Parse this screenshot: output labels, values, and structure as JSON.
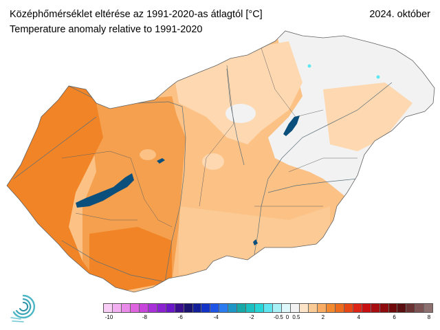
{
  "header": {
    "title_hu": "Középhőmérséklet eltérése az 1991-2020-as átlagtól [°C]",
    "title_en": "Temperature anomaly relative to 1991-2020",
    "period": "2024. október"
  },
  "map": {
    "region": "Hungary",
    "variable": "Temperature anomaly",
    "unit": "°C",
    "zones": [
      {
        "name": "west-transdanubia",
        "anomaly_class": "2 to 3",
        "color": "#f08426"
      },
      {
        "name": "central-transdanubia",
        "anomaly_class": "1.5 to 2",
        "color": "#f5a04e"
      },
      {
        "name": "danube-tisza-interfluve",
        "anomaly_class": "1 to 1.5",
        "color": "#fbc185"
      },
      {
        "name": "north-hungary",
        "anomaly_class": "0.5 to 1",
        "color": "#fdd8b0"
      },
      {
        "name": "great-plain-east",
        "anomaly_class": "-0.5 to 0.5",
        "color": "#f2f2f2"
      }
    ],
    "lakes": [
      "Balaton",
      "Velence",
      "Tisza-tó"
    ]
  },
  "legend": {
    "colors": [
      "#f7cdf5",
      "#f1aef0",
      "#e98be8",
      "#de64e0",
      "#c845dc",
      "#a92fd8",
      "#8a22d2",
      "#6a17c8",
      "#3a0f8e",
      "#1a1470",
      "#13209a",
      "#1434c7",
      "#1e55e6",
      "#2a7cf0",
      "#1f96c8",
      "#18a8a8",
      "#1bc1c1",
      "#26d6d6",
      "#5fe6f0",
      "#a7f1f7",
      "#dff8fb",
      "#f2f2f2",
      "#fde3c8",
      "#fcca94",
      "#f9ac62",
      "#f48a2f",
      "#ee6a1c",
      "#e74614",
      "#dd2416",
      "#c81012",
      "#a80d12",
      "#8e0b0e",
      "#700a0a",
      "#5a1010",
      "#6a3232",
      "#7e5353",
      "#8d7070"
    ],
    "ticks": [
      {
        "label": "-10",
        "value": -10
      },
      {
        "label": "-8",
        "value": -8
      },
      {
        "label": "-6",
        "value": -6
      },
      {
        "label": "-4",
        "value": -4
      },
      {
        "label": "-2",
        "value": -2
      },
      {
        "label": "-0.5",
        "value": -0.5
      },
      {
        "label": "0",
        "value": 0
      },
      {
        "label": "0.5",
        "value": 0.5
      },
      {
        "label": "2",
        "value": 2
      },
      {
        "label": "4",
        "value": 4
      },
      {
        "label": "6",
        "value": 6
      },
      {
        "label": "8",
        "value": 8
      }
    ]
  },
  "logo": {
    "icon": "omsz-swirl-logo"
  }
}
